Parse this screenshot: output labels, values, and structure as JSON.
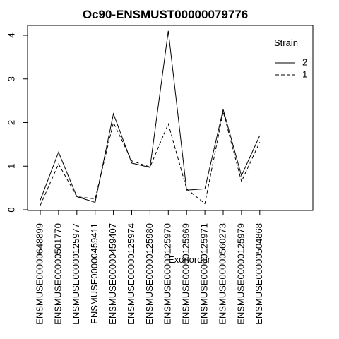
{
  "chart_data": {
    "type": "line",
    "title": "Oc90-ENSMUST00000079776",
    "xlabel": "Exonorder",
    "ylabel": "",
    "categories": [
      "ENSMUSE00000648899",
      "ENSMUSE00000501770",
      "ENSMUSE00000125977",
      "ENSMUSE00000459411",
      "ENSMUSE00000459407",
      "ENSMUSE00000125974",
      "ENSMUSE00000125980",
      "ENSMUSE00000125970",
      "ENSMUSE00000125969",
      "ENSMUSE00000125971",
      "ENSMUSE00000560273",
      "ENSMUSE00000125979",
      "ENSMUSE00000504868"
    ],
    "yticks": [
      0,
      1,
      2,
      3,
      4
    ],
    "ylim": [
      -0.05,
      4.2
    ],
    "legend": {
      "title": "Strain",
      "placement": "top-right"
    },
    "series": [
      {
        "name": "2",
        "line_style": "solid",
        "values": [
          0.22,
          1.32,
          0.3,
          0.17,
          2.2,
          1.07,
          0.97,
          4.1,
          0.45,
          0.48,
          2.3,
          0.78,
          1.7
        ]
      },
      {
        "name": "1",
        "line_style": "dashed",
        "values": [
          0.1,
          1.05,
          0.3,
          0.25,
          2.0,
          1.12,
          0.98,
          1.97,
          0.48,
          0.14,
          2.25,
          0.65,
          1.55
        ]
      }
    ],
    "colors": {
      "line": "#000000",
      "background": "#ffffff"
    }
  }
}
